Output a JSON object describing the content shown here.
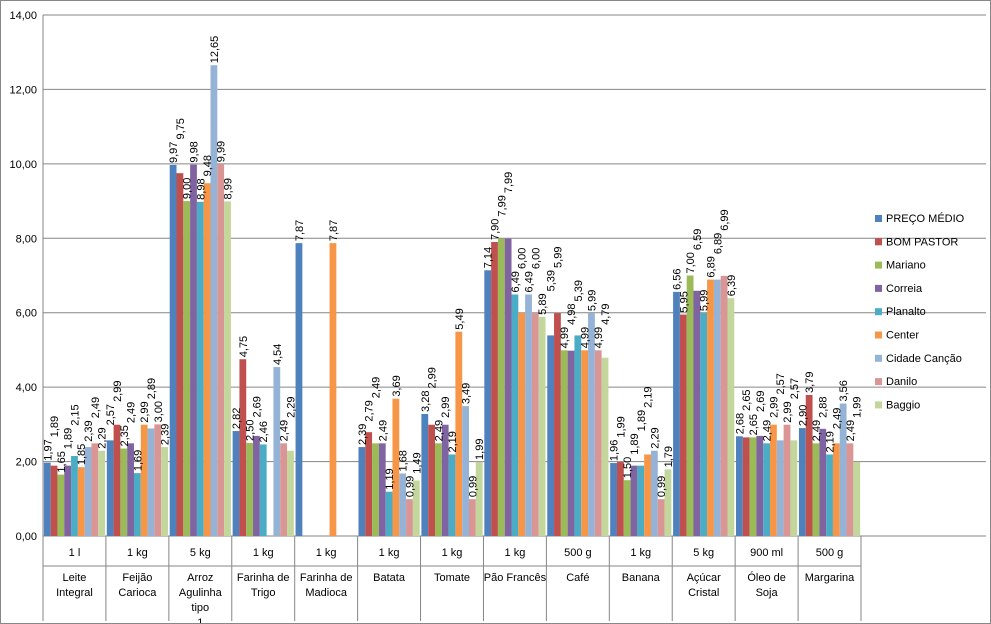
{
  "chart_data": {
    "type": "bar",
    "title": "",
    "ylim": [
      0,
      14
    ],
    "yticks": [
      "0,00",
      "2,00",
      "4,00",
      "6,00",
      "8,00",
      "10,00",
      "12,00",
      "14,00"
    ],
    "legend_position": "right",
    "grid": true,
    "categories": [
      {
        "unit": "1 l",
        "name": "Leite Integral"
      },
      {
        "unit": "1 kg",
        "name": "Feijão Carioca"
      },
      {
        "unit": "5 kg",
        "name": "Arroz Agulinha tipo 1"
      },
      {
        "unit": "1 kg",
        "name": "Farinha de Trigo"
      },
      {
        "unit": "1 kg",
        "name": "Farinha de Madioca"
      },
      {
        "unit": "1 kg",
        "name": "Batata"
      },
      {
        "unit": "1 kg",
        "name": "Tomate"
      },
      {
        "unit": "1 kg",
        "name": "Pão Francês"
      },
      {
        "unit": "500 g",
        "name": "Café"
      },
      {
        "unit": "1 kg",
        "name": "Banana"
      },
      {
        "unit": "5 kg",
        "name": "Açúcar Cristal"
      },
      {
        "unit": "900 ml",
        "name": "Óleo de Soja"
      },
      {
        "unit": "500 g",
        "name": "Margarina"
      }
    ],
    "series": [
      {
        "name": "PREÇO MÉDIO",
        "color": "#4F81BD",
        "values": [
          1.97,
          2.57,
          9.97,
          2.82,
          7.87,
          2.39,
          3.28,
          7.14,
          5.39,
          1.96,
          6.56,
          2.68,
          2.9
        ]
      },
      {
        "name": "BOM PASTOR",
        "color": "#C0504D",
        "values": [
          1.89,
          2.99,
          9.75,
          4.75,
          null,
          2.79,
          2.99,
          7.9,
          5.99,
          1.99,
          5.95,
          2.65,
          3.79
        ]
      },
      {
        "name": "Mariano",
        "color": "#9BBB59",
        "values": [
          1.65,
          2.35,
          9.0,
          2.5,
          null,
          2.49,
          2.49,
          7.99,
          4.99,
          1.5,
          7.0,
          2.65,
          2.49
        ]
      },
      {
        "name": "Correia",
        "color": "#8064A2",
        "values": [
          1.89,
          2.49,
          9.98,
          2.69,
          null,
          2.49,
          2.99,
          7.99,
          4.98,
          1.89,
          6.59,
          2.69,
          2.88
        ]
      },
      {
        "name": "Planalto",
        "color": "#4BACC6",
        "values": [
          2.15,
          1.69,
          8.98,
          2.46,
          null,
          1.19,
          2.19,
          6.49,
          5.39,
          1.89,
          5.99,
          2.49,
          2.19
        ]
      },
      {
        "name": "Center",
        "color": "#F79646",
        "values": [
          1.85,
          2.99,
          9.48,
          null,
          7.87,
          3.69,
          5.49,
          6.0,
          4.99,
          2.19,
          6.89,
          2.99,
          2.49
        ]
      },
      {
        "name": "Cidade Canção",
        "color": "#95B3D7",
        "values": [
          2.39,
          2.89,
          12.65,
          4.54,
          null,
          1.68,
          3.49,
          6.49,
          5.99,
          2.29,
          6.89,
          2.57,
          3.56
        ]
      },
      {
        "name": "Danilo",
        "color": "#D99694",
        "values": [
          2.49,
          3.0,
          9.99,
          2.49,
          null,
          0.99,
          0.99,
          6.0,
          4.99,
          0.99,
          6.99,
          2.99,
          2.49
        ]
      },
      {
        "name": "Baggio",
        "color": "#C3D69B",
        "values": [
          2.29,
          2.39,
          8.99,
          2.29,
          null,
          1.49,
          1.99,
          5.89,
          4.79,
          1.79,
          6.39,
          2.57,
          1.99
        ]
      }
    ]
  }
}
